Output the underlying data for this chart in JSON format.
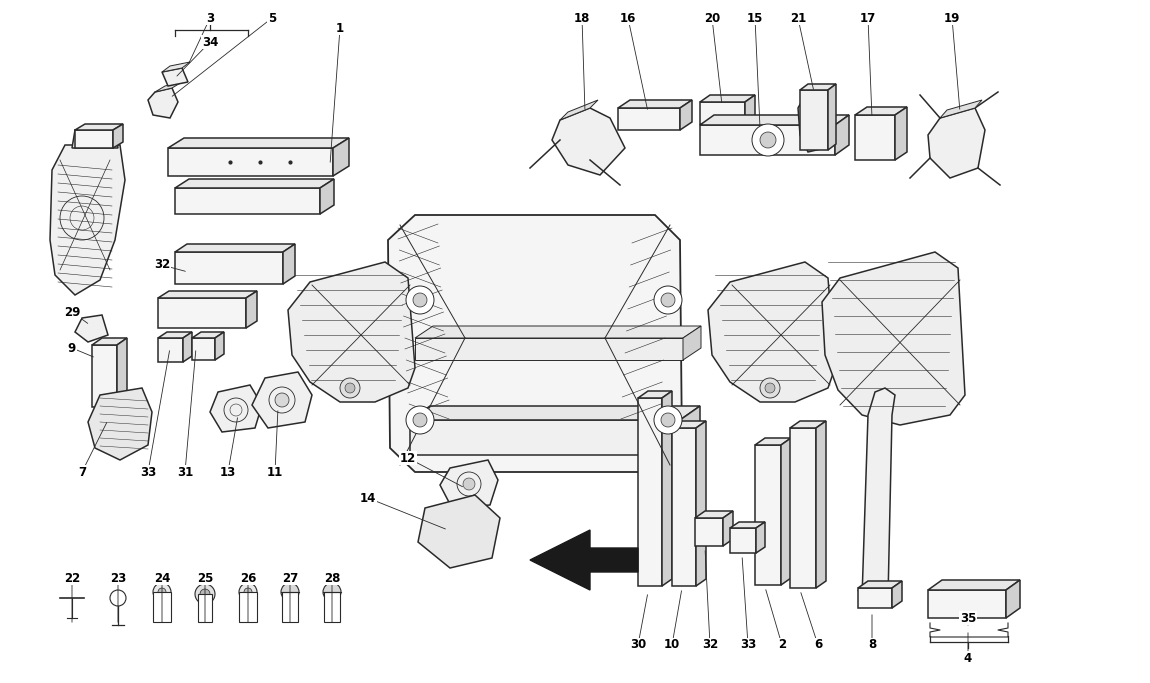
{
  "bg_color": "#ffffff",
  "line_color": "#2a2a2a",
  "fig_width": 11.5,
  "fig_height": 6.83,
  "dpi": 100
}
